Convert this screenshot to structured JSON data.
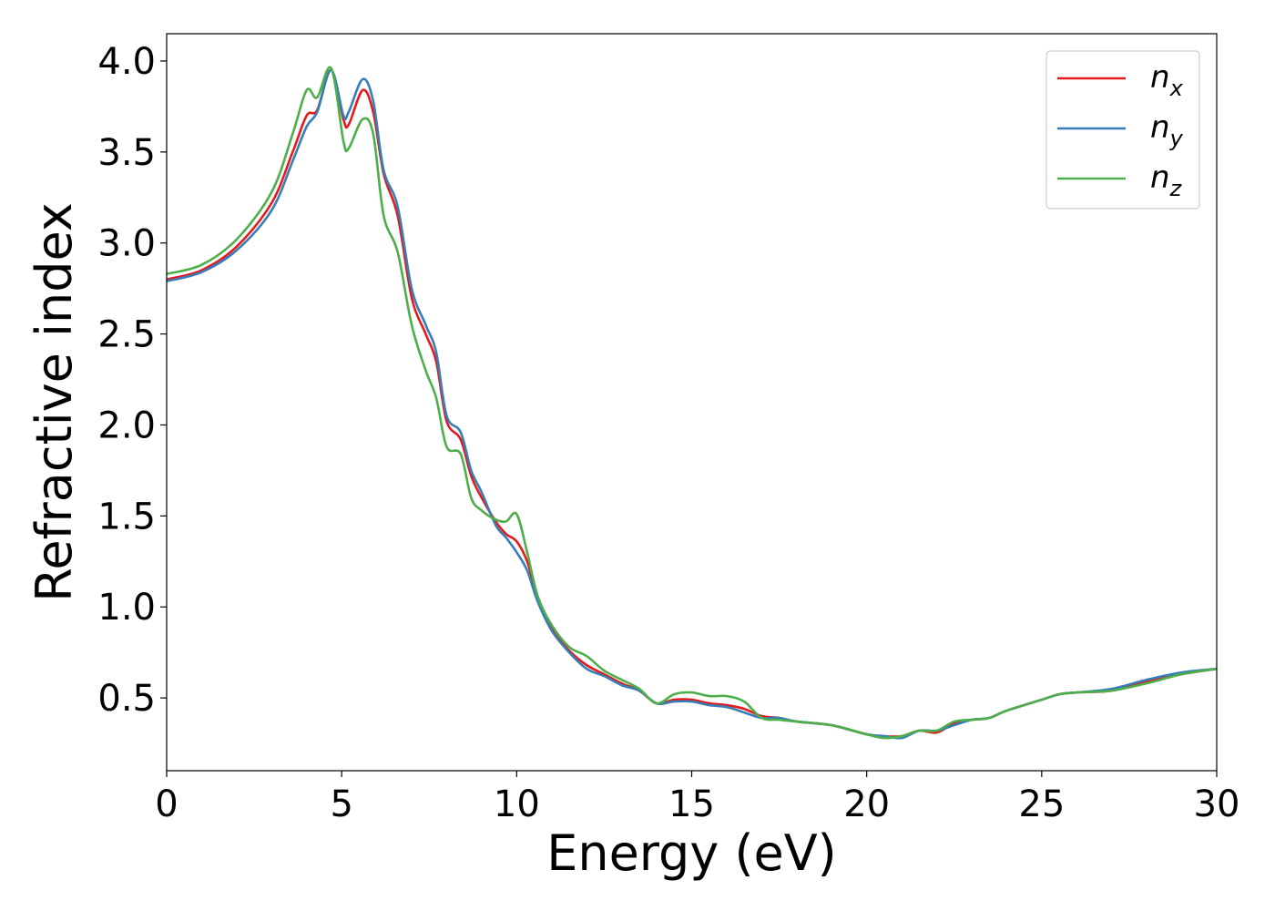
{
  "chart_data": {
    "type": "line",
    "xlabel": "Energy (eV)",
    "ylabel": "Refractive index",
    "xlim": [
      0,
      30
    ],
    "ylim": [
      0.1,
      4.15
    ],
    "xticks": [
      0,
      5,
      10,
      15,
      20,
      25,
      30
    ],
    "xtick_labels": [
      "0",
      "5",
      "10",
      "15",
      "20",
      "25",
      "30"
    ],
    "yticks": [
      0.5,
      1.0,
      1.5,
      2.0,
      2.5,
      3.0,
      3.5,
      4.0
    ],
    "ytick_labels": [
      "0.5",
      "1.0",
      "1.5",
      "2.0",
      "2.5",
      "3.0",
      "3.5",
      "4.0"
    ],
    "grid": false,
    "legend_position": "top-right",
    "series": [
      {
        "name": "n",
        "subscript": "x",
        "color": "#e41a1c",
        "points": [
          [
            0,
            2.8
          ],
          [
            1,
            2.85
          ],
          [
            2,
            2.98
          ],
          [
            3,
            3.22
          ],
          [
            3.6,
            3.5
          ],
          [
            4,
            3.7
          ],
          [
            4.3,
            3.73
          ],
          [
            4.7,
            3.95
          ],
          [
            5.05,
            3.68
          ],
          [
            5.2,
            3.65
          ],
          [
            5.6,
            3.84
          ],
          [
            5.9,
            3.72
          ],
          [
            6.2,
            3.38
          ],
          [
            6.6,
            3.15
          ],
          [
            7,
            2.7
          ],
          [
            7.4,
            2.5
          ],
          [
            7.7,
            2.35
          ],
          [
            8,
            2.02
          ],
          [
            8.4,
            1.92
          ],
          [
            8.7,
            1.72
          ],
          [
            9,
            1.6
          ],
          [
            9.4,
            1.47
          ],
          [
            9.7,
            1.4
          ],
          [
            10,
            1.36
          ],
          [
            10.3,
            1.25
          ],
          [
            10.6,
            1.05
          ],
          [
            11,
            0.88
          ],
          [
            11.5,
            0.76
          ],
          [
            12,
            0.68
          ],
          [
            12.5,
            0.63
          ],
          [
            13,
            0.58
          ],
          [
            13.5,
            0.54
          ],
          [
            14,
            0.47
          ],
          [
            14.5,
            0.49
          ],
          [
            15,
            0.49
          ],
          [
            15.5,
            0.47
          ],
          [
            16,
            0.46
          ],
          [
            16.5,
            0.44
          ],
          [
            17,
            0.4
          ],
          [
            17.5,
            0.39
          ],
          [
            18,
            0.37
          ],
          [
            19,
            0.35
          ],
          [
            20,
            0.3
          ],
          [
            20.5,
            0.29
          ],
          [
            21,
            0.29
          ],
          [
            21.5,
            0.32
          ],
          [
            22,
            0.31
          ],
          [
            22.5,
            0.36
          ],
          [
            23,
            0.38
          ],
          [
            23.5,
            0.39
          ],
          [
            24,
            0.43
          ],
          [
            25,
            0.49
          ],
          [
            25.5,
            0.52
          ],
          [
            26,
            0.53
          ],
          [
            27,
            0.54
          ],
          [
            28,
            0.59
          ],
          [
            29,
            0.63
          ],
          [
            30,
            0.66
          ]
        ]
      },
      {
        "name": "n",
        "subscript": "y",
        "color": "#377eb8",
        "points": [
          [
            0,
            2.79
          ],
          [
            1,
            2.84
          ],
          [
            2,
            2.96
          ],
          [
            3,
            3.18
          ],
          [
            3.6,
            3.45
          ],
          [
            4,
            3.64
          ],
          [
            4.3,
            3.72
          ],
          [
            4.7,
            3.95
          ],
          [
            5.05,
            3.7
          ],
          [
            5.2,
            3.72
          ],
          [
            5.6,
            3.9
          ],
          [
            5.9,
            3.78
          ],
          [
            6.2,
            3.4
          ],
          [
            6.6,
            3.2
          ],
          [
            7,
            2.75
          ],
          [
            7.4,
            2.55
          ],
          [
            7.7,
            2.4
          ],
          [
            8,
            2.05
          ],
          [
            8.4,
            1.96
          ],
          [
            8.7,
            1.75
          ],
          [
            9,
            1.63
          ],
          [
            9.4,
            1.45
          ],
          [
            9.7,
            1.38
          ],
          [
            10,
            1.3
          ],
          [
            10.3,
            1.2
          ],
          [
            10.6,
            1.03
          ],
          [
            11,
            0.87
          ],
          [
            11.5,
            0.75
          ],
          [
            12,
            0.66
          ],
          [
            12.5,
            0.62
          ],
          [
            13,
            0.57
          ],
          [
            13.5,
            0.54
          ],
          [
            14,
            0.47
          ],
          [
            14.5,
            0.48
          ],
          [
            15,
            0.48
          ],
          [
            15.5,
            0.46
          ],
          [
            16,
            0.45
          ],
          [
            16.5,
            0.42
          ],
          [
            17,
            0.39
          ],
          [
            17.5,
            0.39
          ],
          [
            18,
            0.37
          ],
          [
            19,
            0.35
          ],
          [
            20,
            0.3
          ],
          [
            20.5,
            0.29
          ],
          [
            21,
            0.28
          ],
          [
            21.5,
            0.32
          ],
          [
            22,
            0.32
          ],
          [
            22.5,
            0.35
          ],
          [
            23,
            0.38
          ],
          [
            23.5,
            0.39
          ],
          [
            24,
            0.43
          ],
          [
            25,
            0.49
          ],
          [
            25.5,
            0.52
          ],
          [
            26,
            0.53
          ],
          [
            27,
            0.55
          ],
          [
            28,
            0.6
          ],
          [
            29,
            0.64
          ],
          [
            30,
            0.66
          ]
        ]
      },
      {
        "name": "n",
        "subscript": "z",
        "color": "#4daf4a",
        "points": [
          [
            0,
            2.83
          ],
          [
            1,
            2.88
          ],
          [
            2,
            3.02
          ],
          [
            3,
            3.28
          ],
          [
            3.6,
            3.6
          ],
          [
            4,
            3.84
          ],
          [
            4.3,
            3.8
          ],
          [
            4.7,
            3.96
          ],
          [
            5.05,
            3.56
          ],
          [
            5.2,
            3.52
          ],
          [
            5.6,
            3.68
          ],
          [
            5.9,
            3.6
          ],
          [
            6.2,
            3.15
          ],
          [
            6.6,
            2.95
          ],
          [
            7,
            2.55
          ],
          [
            7.4,
            2.3
          ],
          [
            7.7,
            2.15
          ],
          [
            8,
            1.88
          ],
          [
            8.4,
            1.84
          ],
          [
            8.7,
            1.6
          ],
          [
            9,
            1.53
          ],
          [
            9.4,
            1.48
          ],
          [
            9.7,
            1.47
          ],
          [
            10,
            1.51
          ],
          [
            10.3,
            1.3
          ],
          [
            10.6,
            1.06
          ],
          [
            11,
            0.9
          ],
          [
            11.5,
            0.78
          ],
          [
            12,
            0.73
          ],
          [
            12.5,
            0.65
          ],
          [
            13,
            0.6
          ],
          [
            13.5,
            0.55
          ],
          [
            14,
            0.47
          ],
          [
            14.5,
            0.52
          ],
          [
            15,
            0.53
          ],
          [
            15.5,
            0.51
          ],
          [
            16,
            0.51
          ],
          [
            16.5,
            0.48
          ],
          [
            17,
            0.39
          ],
          [
            17.5,
            0.38
          ],
          [
            18,
            0.37
          ],
          [
            19,
            0.35
          ],
          [
            20,
            0.3
          ],
          [
            20.5,
            0.28
          ],
          [
            21,
            0.29
          ],
          [
            21.5,
            0.32
          ],
          [
            22,
            0.32
          ],
          [
            22.5,
            0.37
          ],
          [
            23,
            0.38
          ],
          [
            23.5,
            0.39
          ],
          [
            24,
            0.43
          ],
          [
            25,
            0.49
          ],
          [
            25.5,
            0.52
          ],
          [
            26,
            0.53
          ],
          [
            27,
            0.54
          ],
          [
            28,
            0.58
          ],
          [
            29,
            0.63
          ],
          [
            30,
            0.66
          ]
        ]
      }
    ]
  }
}
